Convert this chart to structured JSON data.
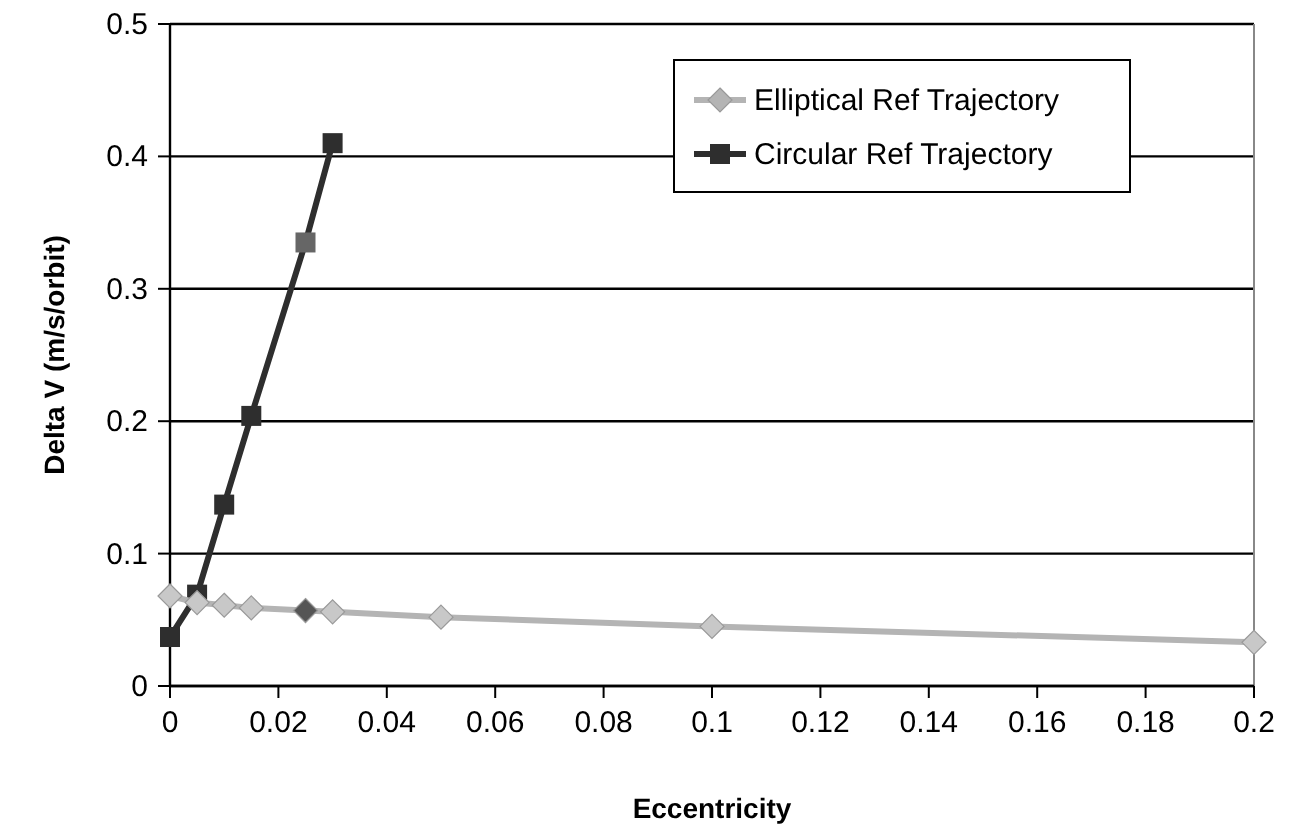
{
  "chart_data": {
    "type": "line",
    "xlabel": "Eccentricity",
    "ylabel": "Delta V (m/s/orbit)",
    "xlim": [
      0,
      0.2
    ],
    "xticks": [
      0,
      0.02,
      0.04,
      0.06,
      0.08,
      0.1,
      0.12,
      0.14,
      0.16,
      0.18,
      0.2
    ],
    "ylim": [
      0,
      0.5
    ],
    "yticks": [
      0,
      0.1,
      0.2,
      0.3,
      0.4,
      0.5
    ],
    "grid": "y",
    "legend": "top right",
    "series": [
      {
        "name": "Elliptical Ref Trajectory",
        "color": "#b4b4b4",
        "marker": "diamond",
        "x": [
          0,
          0.005,
          0.01,
          0.015,
          0.025,
          0.03,
          0.05,
          0.1,
          0.2
        ],
        "values": [
          0.068,
          0.063,
          0.061,
          0.059,
          0.057,
          0.056,
          0.052,
          0.045,
          0.033
        ],
        "colors": [
          "#c8c8c8",
          "#c8c8c8",
          "#c8c8c8",
          "#c8c8c8",
          "#555555",
          "#c8c8c8",
          "#c8c8c8",
          "#c8c8c8",
          "#c8c8c8"
        ]
      },
      {
        "name": "Circular Ref Trajectory",
        "color": "#2e2e2e",
        "marker": "square",
        "x": [
          0,
          0.005,
          0.01,
          0.015,
          0.025,
          0.03
        ],
        "values": [
          0.037,
          0.069,
          0.137,
          0.204,
          0.335,
          0.41
        ],
        "colors": [
          "#2e2e2e",
          "#2e2e2e",
          "#2e2e2e",
          "#2e2e2e",
          "#666666",
          "#2e2e2e"
        ]
      }
    ]
  }
}
